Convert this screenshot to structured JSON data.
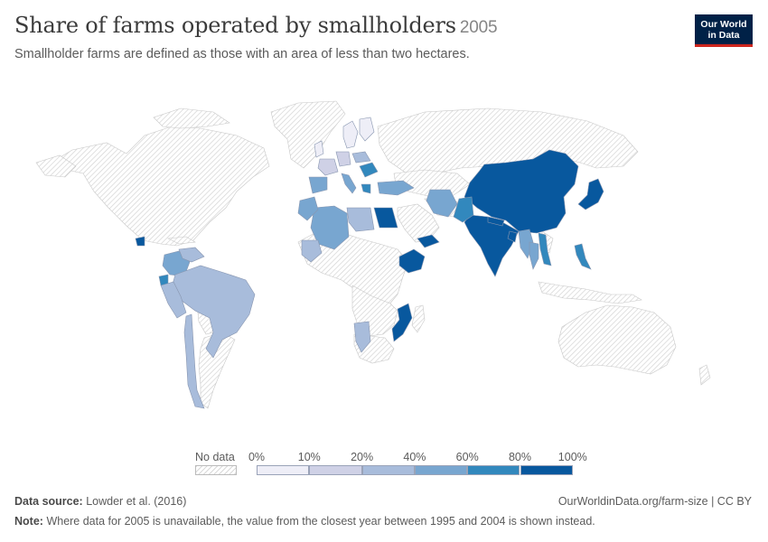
{
  "header": {
    "title": "Share of farms operated by smallholders",
    "year": "2005",
    "subtitle": "Smallholder farms are defined as those with an area of less than two hectares."
  },
  "logo": {
    "line1": "Our World",
    "line2": "in Data",
    "bg": "#002147",
    "accent": "#ce261e"
  },
  "legend": {
    "no_data_label": "No data",
    "bins": [
      {
        "from": 0,
        "to": 10,
        "color": "#eeeef7"
      },
      {
        "from": 10,
        "to": 20,
        "color": "#cfd1e6"
      },
      {
        "from": 20,
        "to": 40,
        "color": "#a8bcdb"
      },
      {
        "from": 40,
        "to": 60,
        "color": "#78a6d0"
      },
      {
        "from": 60,
        "to": 80,
        "color": "#3288bd"
      },
      {
        "from": 80,
        "to": 100,
        "color": "#08589e"
      }
    ],
    "tick_labels": [
      "0%",
      "10%",
      "20%",
      "40%",
      "60%",
      "80%",
      "100%"
    ]
  },
  "footer": {
    "source_label": "Data source:",
    "source_text": "Lowder et al. (2016)",
    "url": "OurWorldinData.org/farm-size | CC BY",
    "note_label": "Note:",
    "note_text": "Where data for 2005 is unavailable, the value from the closest year between 1995 and 2004 is shown instead."
  },
  "map_data": {
    "no_data_color": "#e8e8e8",
    "regions": [
      {
        "name": "China",
        "share_bin": "80-100%",
        "color": "#08589e"
      },
      {
        "name": "India",
        "share_bin": "80-100%",
        "color": "#08589e"
      },
      {
        "name": "Japan",
        "share_bin": "80-100%",
        "color": "#08589e"
      },
      {
        "name": "Ethiopia",
        "share_bin": "80-100%",
        "color": "#08589e"
      },
      {
        "name": "Egypt",
        "share_bin": "80-100%",
        "color": "#08589e"
      },
      {
        "name": "Mozambique",
        "share_bin": "80-100%",
        "color": "#08589e"
      },
      {
        "name": "Yemen",
        "share_bin": "80-100%",
        "color": "#08589e"
      },
      {
        "name": "Nepal",
        "share_bin": "80-100%",
        "color": "#08589e"
      },
      {
        "name": "Bangladesh",
        "share_bin": "80-100%",
        "color": "#08589e"
      },
      {
        "name": "Guatemala",
        "share_bin": "80-100%",
        "color": "#08589e"
      },
      {
        "name": "Vietnam",
        "share_bin": "60-80%",
        "color": "#3288bd"
      },
      {
        "name": "Philippines",
        "share_bin": "60-80%",
        "color": "#3288bd"
      },
      {
        "name": "Pakistan",
        "share_bin": "60-80%",
        "color": "#3288bd"
      },
      {
        "name": "Romania",
        "share_bin": "60-80%",
        "color": "#3288bd"
      },
      {
        "name": "Greece",
        "share_bin": "60-80%",
        "color": "#3288bd"
      },
      {
        "name": "Ecuador",
        "share_bin": "60-80%",
        "color": "#3288bd"
      },
      {
        "name": "Iran",
        "share_bin": "40-60%",
        "color": "#78a6d0"
      },
      {
        "name": "Turkey",
        "share_bin": "40-60%",
        "color": "#78a6d0"
      },
      {
        "name": "Algeria",
        "share_bin": "40-60%",
        "color": "#78a6d0"
      },
      {
        "name": "Morocco",
        "share_bin": "40-60%",
        "color": "#78a6d0"
      },
      {
        "name": "Spain",
        "share_bin": "40-60%",
        "color": "#78a6d0"
      },
      {
        "name": "Myanmar",
        "share_bin": "40-60%",
        "color": "#78a6d0"
      },
      {
        "name": "Thailand",
        "share_bin": "40-60%",
        "color": "#78a6d0"
      },
      {
        "name": "Italy",
        "share_bin": "40-60%",
        "color": "#78a6d0"
      },
      {
        "name": "Colombia",
        "share_bin": "40-60%",
        "color": "#78a6d0"
      },
      {
        "name": "Brazil",
        "share_bin": "20-40%",
        "color": "#a8bcdb"
      },
      {
        "name": "Peru",
        "share_bin": "20-40%",
        "color": "#a8bcdb"
      },
      {
        "name": "Chile",
        "share_bin": "20-40%",
        "color": "#a8bcdb"
      },
      {
        "name": "Venezuela",
        "share_bin": "20-40%",
        "color": "#a8bcdb"
      },
      {
        "name": "Namibia",
        "share_bin": "20-40%",
        "color": "#a8bcdb"
      },
      {
        "name": "Mali",
        "share_bin": "20-40%",
        "color": "#a8bcdb"
      },
      {
        "name": "Libya",
        "share_bin": "20-40%",
        "color": "#a8bcdb"
      },
      {
        "name": "Poland",
        "share_bin": "20-40%",
        "color": "#a8bcdb"
      },
      {
        "name": "France",
        "share_bin": "10-20%",
        "color": "#cfd1e6"
      },
      {
        "name": "Germany",
        "share_bin": "10-20%",
        "color": "#cfd1e6"
      },
      {
        "name": "Sweden",
        "share_bin": "0-10%",
        "color": "#eeeef7"
      },
      {
        "name": "Finland",
        "share_bin": "0-10%",
        "color": "#eeeef7"
      },
      {
        "name": "United Kingdom",
        "share_bin": "0-10%",
        "color": "#eeeef7"
      }
    ]
  }
}
